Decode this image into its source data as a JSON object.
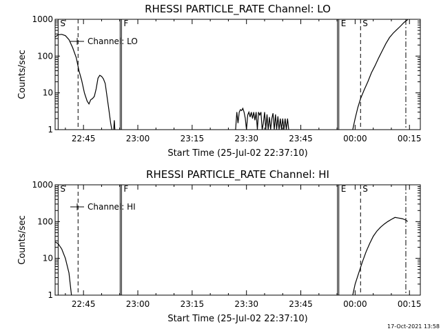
{
  "chart_data": [
    {
      "type": "line",
      "title": "RHESSI PARTICLE_RATE Channel: LO",
      "xlabel": "Start Time (25-Jul-02 22:37:10)",
      "ylabel": "Counts/sec",
      "yscale": "log",
      "ylim": [
        1,
        1000
      ],
      "xlim": [
        "22:37:10",
        "00:18:00"
      ],
      "x_ticks": [
        "22:45",
        "23:00",
        "23:15",
        "23:30",
        "23:45",
        "00:00",
        "00:15"
      ],
      "y_ticks": [
        "1",
        "10",
        "100",
        "1000"
      ],
      "legend": {
        "label": "Channel: LO",
        "position": "top-left"
      },
      "markers": [
        {
          "label": "S",
          "time": "22:38",
          "style": "solid"
        },
        {
          "label": "",
          "time": "22:43:30",
          "style": "dashed"
        },
        {
          "label": "F",
          "time": "22:55:30",
          "style": "solid"
        },
        {
          "label": "E",
          "time": "23:55:30",
          "style": "solid"
        },
        {
          "label": "S",
          "time": "00:01:30",
          "style": "dashed"
        },
        {
          "label": "",
          "time": "00:14:00",
          "style": "dashdot"
        }
      ],
      "series": [
        {
          "segments": [
            [
              [
                "22:37:10",
                330
              ],
              [
                "22:38:00",
                380
              ],
              [
                "22:39:00",
                390
              ],
              [
                "22:40:00",
                360
              ],
              [
                "22:41:00",
                280
              ],
              [
                "22:42:00",
                170
              ],
              [
                "22:43:00",
                90
              ],
              [
                "22:43:45",
                40
              ],
              [
                "22:44:30",
                22
              ],
              [
                "22:45:15",
                10
              ],
              [
                "22:46:00",
                6
              ],
              [
                "22:46:30",
                5
              ],
              [
                "22:47:00",
                6.5
              ],
              [
                "22:47:30",
                7
              ],
              [
                "22:48:00",
                8
              ],
              [
                "22:48:30",
                13
              ],
              [
                "22:49:00",
                25
              ],
              [
                "22:49:30",
                30
              ],
              [
                "22:50:00",
                28
              ],
              [
                "22:50:30",
                24
              ],
              [
                "22:51:00",
                18
              ],
              [
                "22:51:30",
                8
              ],
              [
                "22:52:00",
                3.5
              ],
              [
                "22:52:30",
                1.5
              ],
              [
                "22:52:50",
                1
              ]
            ],
            [
              [
                "22:53:20",
                1
              ],
              [
                "22:53:30",
                1.8
              ],
              [
                "22:53:40",
                1
              ]
            ],
            [
              [
                "23:27:00",
                1
              ],
              [
                "23:27:20",
                3
              ],
              [
                "23:27:40",
                1.5
              ],
              [
                "23:28:00",
                3
              ],
              [
                "23:28:20",
                3.5
              ],
              [
                "23:28:40",
                3.3
              ],
              [
                "23:29:00",
                3.8
              ],
              [
                "23:29:20",
                3
              ],
              [
                "23:29:40",
                2
              ],
              [
                "23:30:00",
                1
              ],
              [
                "23:30:20",
                2.5
              ],
              [
                "23:30:40",
                3
              ],
              [
                "23:31:00",
                2.2
              ],
              [
                "23:31:20",
                3
              ],
              [
                "23:31:40",
                2
              ],
              [
                "23:32:00",
                3
              ],
              [
                "23:32:20",
                1.8
              ],
              [
                "23:32:40",
                3
              ],
              [
                "23:33:00",
                1
              ],
              [
                "23:33:20",
                3
              ],
              [
                "23:33:40",
                2.5
              ],
              [
                "23:34:00",
                3
              ],
              [
                "23:34:20",
                1
              ],
              [
                "23:34:40",
                1.5
              ],
              [
                "23:35:00",
                3
              ],
              [
                "23:35:20",
                1
              ],
              [
                "23:35:40",
                2.6
              ],
              [
                "23:36:00",
                1
              ],
              [
                "23:36:20",
                2.2
              ],
              [
                "23:36:40",
                1
              ],
              [
                "23:37:00",
                2
              ],
              [
                "23:37:20",
                2.8
              ],
              [
                "23:37:40",
                1
              ],
              [
                "23:38:00",
                2.6
              ],
              [
                "23:38:20",
                1
              ],
              [
                "23:38:40",
                2.3
              ],
              [
                "23:39:00",
                1
              ],
              [
                "23:39:20",
                2
              ],
              [
                "23:39:40",
                1
              ],
              [
                "23:40:00",
                2
              ],
              [
                "23:40:20",
                1
              ],
              [
                "23:40:40",
                2
              ],
              [
                "23:41:00",
                1
              ],
              [
                "23:41:20",
                2
              ],
              [
                "23:41:40",
                1
              ]
            ],
            [
              [
                "23:59:20",
                1
              ],
              [
                "00:00:00",
                2
              ],
              [
                "00:00:45",
                4
              ],
              [
                "00:01:30",
                7
              ],
              [
                "00:02:30",
                12
              ],
              [
                "00:03:30",
                20
              ],
              [
                "00:04:30",
                35
              ],
              [
                "00:05:30",
                55
              ],
              [
                "00:06:30",
                90
              ],
              [
                "00:07:30",
                140
              ],
              [
                "00:08:30",
                220
              ],
              [
                "00:09:30",
                320
              ],
              [
                "00:10:30",
                420
              ],
              [
                "00:11:30",
                520
              ],
              [
                "00:12:30",
                650
              ],
              [
                "00:13:30",
                820
              ],
              [
                "00:14:30",
                980
              ]
            ]
          ]
        }
      ]
    },
    {
      "type": "line",
      "title": "RHESSI PARTICLE_RATE Channel: HI",
      "xlabel": "Start Time (25-Jul-02 22:37:10)",
      "ylabel": "Counts/sec",
      "yscale": "log",
      "ylim": [
        1,
        1000
      ],
      "xlim": [
        "22:37:10",
        "00:18:00"
      ],
      "x_ticks": [
        "22:45",
        "23:00",
        "23:15",
        "23:30",
        "23:45",
        "00:00",
        "00:15"
      ],
      "y_ticks": [
        "1",
        "10",
        "100",
        "1000"
      ],
      "legend": {
        "label": "Channel: HI",
        "position": "top-left"
      },
      "markers": [
        {
          "label": "S",
          "time": "22:38",
          "style": "solid"
        },
        {
          "label": "",
          "time": "22:43:30",
          "style": "dashed"
        },
        {
          "label": "F",
          "time": "22:55:30",
          "style": "solid"
        },
        {
          "label": "E",
          "time": "23:55:30",
          "style": "solid"
        },
        {
          "label": "S",
          "time": "00:01:30",
          "style": "dashed"
        },
        {
          "label": "",
          "time": "00:14:00",
          "style": "dashdot"
        }
      ],
      "series": [
        {
          "segments": [
            [
              [
                "22:37:10",
                28
              ],
              [
                "22:38:00",
                25
              ],
              [
                "22:39:00",
                18
              ],
              [
                "22:40:00",
                10
              ],
              [
                "22:41:00",
                4
              ],
              [
                "22:41:40",
                1
              ]
            ],
            [
              [
                "23:59:20",
                1
              ],
              [
                "00:00:00",
                2
              ],
              [
                "00:01:00",
                4
              ],
              [
                "00:02:00",
                8
              ],
              [
                "00:03:00",
                15
              ],
              [
                "00:04:00",
                25
              ],
              [
                "00:05:00",
                40
              ],
              [
                "00:06:00",
                55
              ],
              [
                "00:07:00",
                70
              ],
              [
                "00:08:00",
                85
              ],
              [
                "00:09:00",
                100
              ],
              [
                "00:10:00",
                115
              ],
              [
                "00:11:00",
                130
              ],
              [
                "00:12:00",
                125
              ],
              [
                "00:13:00",
                120
              ],
              [
                "00:14:00",
                110
              ],
              [
                "00:14:30",
                100
              ]
            ]
          ]
        }
      ]
    }
  ],
  "footer": {
    "timestamp": "17-Oct-2021 13:58"
  }
}
